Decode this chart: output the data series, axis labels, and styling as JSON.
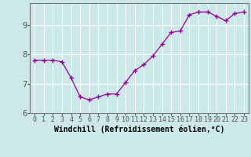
{
  "x": [
    0,
    1,
    2,
    3,
    4,
    5,
    6,
    7,
    8,
    9,
    10,
    11,
    12,
    13,
    14,
    15,
    16,
    17,
    18,
    19,
    20,
    21,
    22,
    23
  ],
  "y": [
    7.8,
    7.8,
    7.8,
    7.75,
    7.2,
    6.55,
    6.45,
    6.55,
    6.65,
    6.65,
    7.05,
    7.45,
    7.65,
    7.95,
    8.35,
    8.75,
    8.8,
    9.35,
    9.45,
    9.45,
    9.3,
    9.15,
    9.4,
    9.45
  ],
  "line_color": "#990099",
  "marker": "+",
  "marker_size": 4,
  "bg_color": "#cce8e8",
  "grid_color": "#ffffff",
  "xlabel": "Windchill (Refroidissement éolien,°C)",
  "xlabel_fontsize": 7,
  "tick_fontsize": 7,
  "ylim": [
    6.0,
    9.75
  ],
  "xlim": [
    -0.5,
    23.5
  ],
  "yticks": [
    6,
    7,
    8,
    9
  ],
  "xticks": [
    0,
    1,
    2,
    3,
    4,
    5,
    6,
    7,
    8,
    9,
    10,
    11,
    12,
    13,
    14,
    15,
    16,
    17,
    18,
    19,
    20,
    21,
    22,
    23
  ]
}
